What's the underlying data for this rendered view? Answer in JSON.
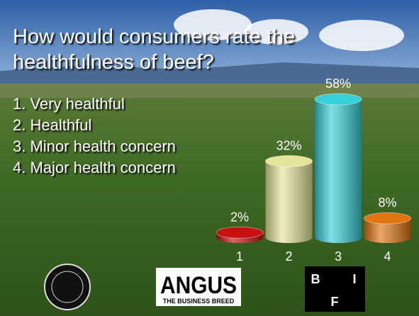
{
  "chart_data": {
    "type": "bar",
    "title": "How would consumers rate the healthfulness of beef?",
    "legend_items": [
      "1. Very healthful",
      "2. Healthful",
      "3. Minor health concern",
      "4. Major health concern"
    ],
    "categories": [
      "1",
      "2",
      "3",
      "4"
    ],
    "values": [
      2,
      32,
      58,
      8
    ],
    "value_labels": [
      "2%",
      "32%",
      "58%",
      "8%"
    ],
    "colors": [
      "#c81010",
      "#e6e49a",
      "#38cfd6",
      "#e07412"
    ]
  },
  "logos": {
    "angus": "ANGUS",
    "angus_tagline": "THE BUSINESS BREED",
    "bif": [
      "B",
      "I",
      "F"
    ]
  }
}
